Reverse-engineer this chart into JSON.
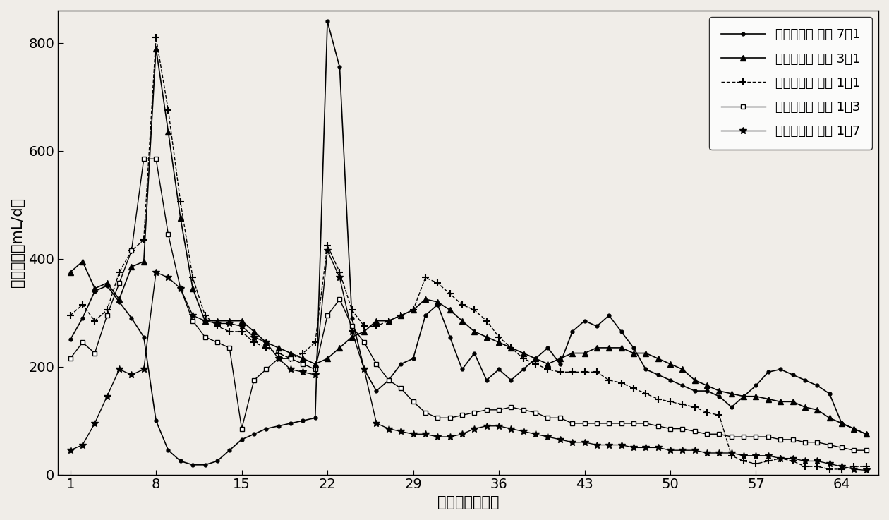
{
  "xlabel": "发酵时间（天）",
  "ylabel": "日产气量（mL/d）",
  "xlim": [
    0,
    67
  ],
  "ylim": [
    0,
    860
  ],
  "xticks": [
    1,
    8,
    15,
    22,
    29,
    36,
    43,
    50,
    57,
    64
  ],
  "yticks": [
    0,
    200,
    400,
    600,
    800
  ],
  "legend_7_1": "互花米草： 牛粪 7：1",
  "legend_3_1": "互花米草： 牛粪 3：1",
  "legend_1_1": "互花米草： 牛粪 1：1",
  "legend_1_3": "互花米草： 牛粪 1：3",
  "legend_1_7": "互花米草： 牛粪 1：7",
  "series_7_1_x": [
    1,
    2,
    3,
    4,
    5,
    6,
    7,
    8,
    9,
    10,
    11,
    12,
    13,
    14,
    15,
    16,
    17,
    18,
    19,
    20,
    21,
    22,
    23,
    24,
    25,
    26,
    27,
    28,
    29,
    30,
    31,
    32,
    33,
    34,
    35,
    36,
    37,
    38,
    39,
    40,
    41,
    42,
    43,
    44,
    45,
    46,
    47,
    48,
    49,
    50,
    51,
    52,
    53,
    54,
    55,
    56,
    57,
    58,
    59,
    60,
    61,
    62,
    63,
    64,
    65,
    66
  ],
  "series_7_1_y": [
    250,
    290,
    340,
    350,
    320,
    290,
    255,
    100,
    45,
    25,
    18,
    18,
    25,
    45,
    65,
    75,
    85,
    90,
    95,
    100,
    105,
    840,
    755,
    290,
    195,
    155,
    175,
    205,
    215,
    295,
    315,
    255,
    195,
    225,
    175,
    195,
    175,
    195,
    215,
    235,
    205,
    265,
    285,
    275,
    295,
    265,
    235,
    195,
    185,
    175,
    165,
    155,
    155,
    145,
    125,
    145,
    165,
    190,
    195,
    185,
    175,
    165,
    150,
    95,
    85,
    75
  ],
  "series_3_1_x": [
    1,
    2,
    3,
    4,
    5,
    6,
    7,
    8,
    9,
    10,
    11,
    12,
    13,
    14,
    15,
    16,
    17,
    18,
    19,
    20,
    21,
    22,
    23,
    24,
    25,
    26,
    27,
    28,
    29,
    30,
    31,
    32,
    33,
    34,
    35,
    36,
    37,
    38,
    39,
    40,
    41,
    42,
    43,
    44,
    45,
    46,
    47,
    48,
    49,
    50,
    51,
    52,
    53,
    54,
    55,
    56,
    57,
    58,
    59,
    60,
    61,
    62,
    63,
    64,
    65,
    66
  ],
  "series_3_1_y": [
    375,
    395,
    345,
    355,
    325,
    385,
    395,
    790,
    635,
    475,
    345,
    285,
    285,
    285,
    285,
    265,
    245,
    235,
    225,
    215,
    205,
    215,
    235,
    255,
    265,
    285,
    285,
    295,
    305,
    325,
    320,
    305,
    285,
    265,
    255,
    245,
    235,
    225,
    215,
    205,
    215,
    225,
    225,
    235,
    235,
    235,
    225,
    225,
    215,
    205,
    195,
    175,
    165,
    155,
    150,
    145,
    145,
    140,
    135,
    135,
    125,
    120,
    105,
    95,
    85,
    75
  ],
  "series_1_1_x": [
    1,
    2,
    3,
    4,
    5,
    6,
    7,
    8,
    9,
    10,
    11,
    12,
    13,
    14,
    15,
    16,
    17,
    18,
    19,
    20,
    21,
    22,
    23,
    24,
    25,
    26,
    27,
    28,
    29,
    30,
    31,
    32,
    33,
    34,
    35,
    36,
    37,
    38,
    39,
    40,
    41,
    42,
    43,
    44,
    45,
    46,
    47,
    48,
    49,
    50,
    51,
    52,
    53,
    54,
    55,
    56,
    57,
    58,
    59,
    60,
    61,
    62,
    63,
    64,
    65,
    66
  ],
  "series_1_1_y": [
    295,
    315,
    285,
    305,
    375,
    415,
    435,
    810,
    675,
    505,
    365,
    295,
    275,
    265,
    265,
    245,
    235,
    225,
    215,
    225,
    245,
    425,
    375,
    305,
    275,
    275,
    285,
    295,
    305,
    365,
    355,
    335,
    315,
    305,
    285,
    255,
    235,
    215,
    205,
    195,
    190,
    190,
    190,
    190,
    175,
    170,
    160,
    150,
    140,
    135,
    130,
    125,
    115,
    110,
    35,
    25,
    20,
    25,
    30,
    25,
    15,
    15,
    10,
    10,
    15,
    15
  ],
  "series_1_3_x": [
    1,
    2,
    3,
    4,
    5,
    6,
    7,
    8,
    9,
    10,
    11,
    12,
    13,
    14,
    15,
    16,
    17,
    18,
    19,
    20,
    21,
    22,
    23,
    24,
    25,
    26,
    27,
    28,
    29,
    30,
    31,
    32,
    33,
    34,
    35,
    36,
    37,
    38,
    39,
    40,
    41,
    42,
    43,
    44,
    45,
    46,
    47,
    48,
    49,
    50,
    51,
    52,
    53,
    54,
    55,
    56,
    57,
    58,
    59,
    60,
    61,
    62,
    63,
    64,
    65,
    66
  ],
  "series_1_3_y": [
    215,
    245,
    225,
    295,
    355,
    415,
    585,
    585,
    445,
    345,
    285,
    255,
    245,
    235,
    85,
    175,
    195,
    215,
    215,
    205,
    195,
    295,
    325,
    275,
    245,
    205,
    175,
    160,
    135,
    115,
    105,
    105,
    110,
    115,
    120,
    120,
    125,
    120,
    115,
    105,
    105,
    95,
    95,
    95,
    95,
    95,
    95,
    95,
    90,
    85,
    85,
    80,
    75,
    75,
    70,
    70,
    70,
    70,
    65,
    65,
    60,
    60,
    55,
    50,
    45,
    45
  ],
  "series_1_7_x": [
    1,
    2,
    3,
    4,
    5,
    6,
    7,
    8,
    9,
    10,
    11,
    12,
    13,
    14,
    15,
    16,
    17,
    18,
    19,
    20,
    21,
    22,
    23,
    24,
    25,
    26,
    27,
    28,
    29,
    30,
    31,
    32,
    33,
    34,
    35,
    36,
    37,
    38,
    39,
    40,
    41,
    42,
    43,
    44,
    45,
    46,
    47,
    48,
    49,
    50,
    51,
    52,
    53,
    54,
    55,
    56,
    57,
    58,
    59,
    60,
    61,
    62,
    63,
    64,
    65,
    66
  ],
  "series_1_7_y": [
    45,
    55,
    95,
    145,
    195,
    185,
    195,
    375,
    365,
    345,
    295,
    285,
    280,
    280,
    275,
    255,
    245,
    215,
    195,
    190,
    185,
    415,
    365,
    265,
    195,
    95,
    85,
    80,
    75,
    75,
    70,
    70,
    75,
    85,
    90,
    90,
    85,
    80,
    75,
    70,
    65,
    60,
    60,
    55,
    55,
    55,
    50,
    50,
    50,
    45,
    45,
    45,
    40,
    40,
    40,
    35,
    35,
    35,
    30,
    30,
    25,
    25,
    20,
    15,
    10,
    8
  ]
}
